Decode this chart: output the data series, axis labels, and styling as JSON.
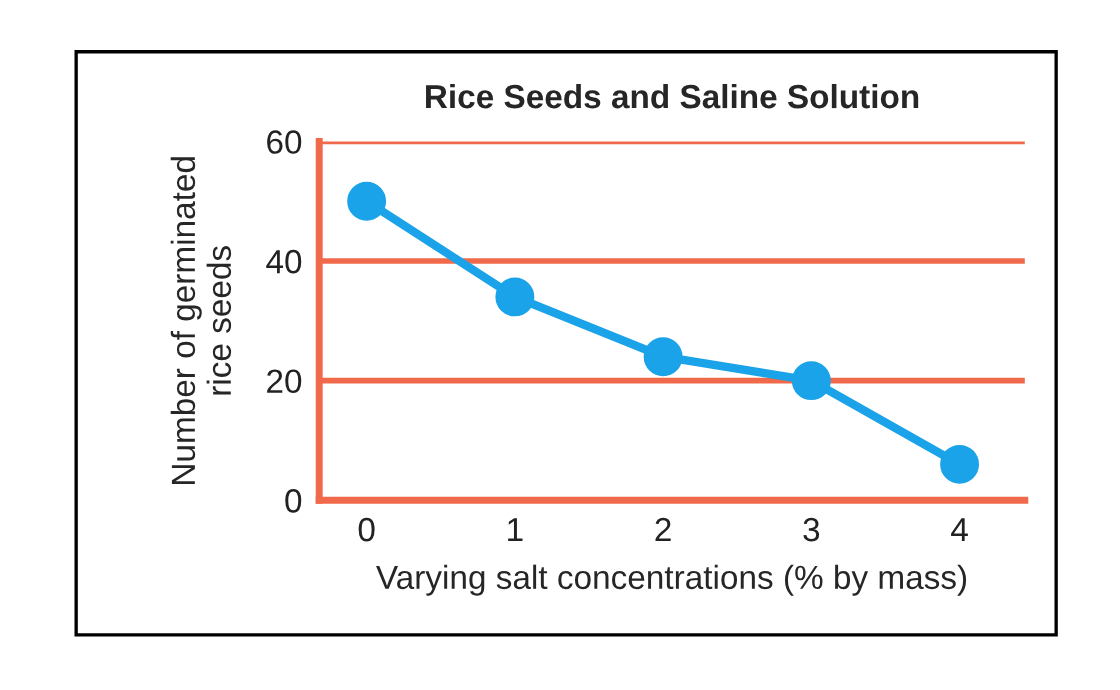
{
  "chart_data": {
    "type": "line",
    "title": "Rice Seeds and Saline Solution",
    "xlabel": "Varying salt concentrations (% by mass)",
    "ylabel": "Number of germinated\nrice seeds",
    "x": [
      0,
      1,
      2,
      3,
      4
    ],
    "series": [
      {
        "color": "#1aa3e8",
        "values": [
          50,
          34,
          24,
          20,
          6
        ]
      }
    ],
    "xlim": [
      -0.32,
      4.44
    ],
    "xticks": [
      0,
      1,
      2,
      3,
      4
    ],
    "ylim": [
      0,
      60
    ],
    "yticks": [
      0,
      20,
      40,
      60
    ],
    "grid": "y",
    "marker": "circle",
    "line_style": "solid"
  }
}
